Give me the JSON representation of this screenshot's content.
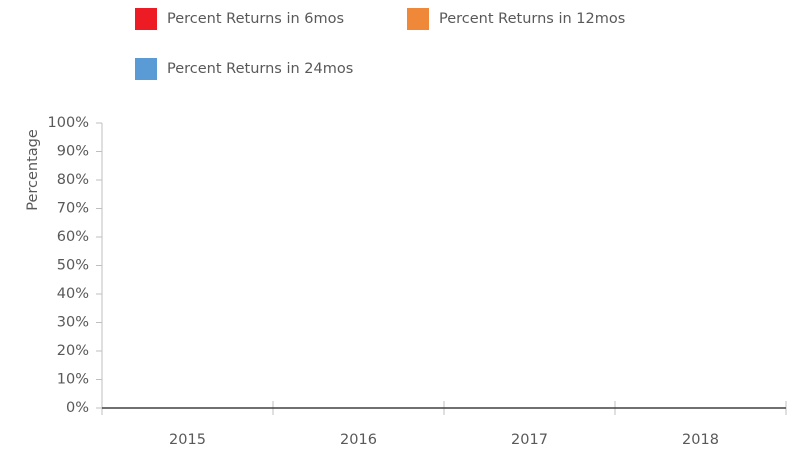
{
  "chart_data": {
    "type": "bar",
    "categories": [
      "2015",
      "2016",
      "2017",
      "2018"
    ],
    "series": [
      {
        "name": "Percent Returns in 6mos",
        "color": "#ed1c24",
        "values": [
          0,
          0,
          0,
          0
        ]
      },
      {
        "name": "Percent Returns in 12mos",
        "color": "#f0883a",
        "values": [
          0,
          0,
          0,
          0
        ]
      },
      {
        "name": "Percent Returns in 24mos",
        "color": "#5b9bd5",
        "values": [
          0,
          0,
          0,
          0
        ]
      }
    ],
    "ylabel": "Percentage",
    "ylim": [
      0,
      100
    ],
    "yticks": [
      {
        "value": 0,
        "label": "0%"
      },
      {
        "value": 10,
        "label": "10%"
      },
      {
        "value": 20,
        "label": "20%"
      },
      {
        "value": 30,
        "label": "30%"
      },
      {
        "value": 40,
        "label": "40%"
      },
      {
        "value": 50,
        "label": "50%"
      },
      {
        "value": 60,
        "label": "60%"
      },
      {
        "value": 70,
        "label": "70%"
      },
      {
        "value": 80,
        "label": "80%"
      },
      {
        "value": 90,
        "label": "90%"
      },
      {
        "value": 100,
        "label": "100%"
      }
    ],
    "legend": "top",
    "grid": false
  }
}
